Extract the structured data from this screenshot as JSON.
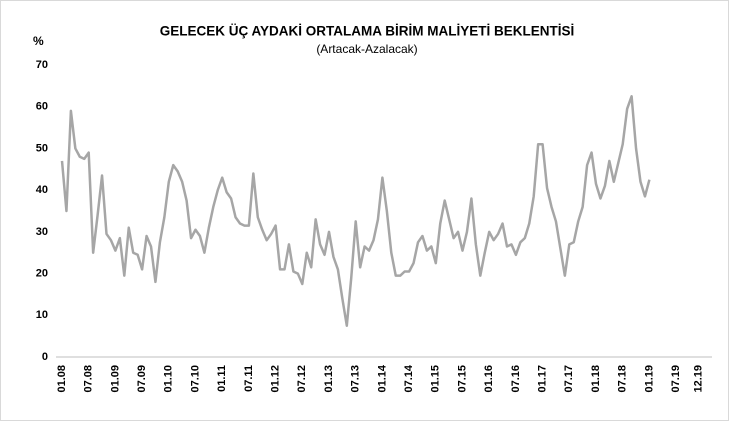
{
  "chart_data": {
    "type": "line",
    "title": "GELECEK ÜÇ AYDAKİ ORTALAMA BİRİM MALİYETİ BEKLENTİSİ",
    "subtitle": "(Artacak-Azalacak)",
    "y_label": "%",
    "categories": [
      "01.08",
      null,
      null,
      null,
      null,
      null,
      "07.08",
      null,
      null,
      null,
      null,
      null,
      "01.09",
      null,
      null,
      null,
      null,
      null,
      "07.09",
      null,
      null,
      null,
      null,
      null,
      "01.10",
      null,
      null,
      null,
      null,
      null,
      "07.10",
      null,
      null,
      null,
      null,
      null,
      "01.11",
      null,
      null,
      null,
      null,
      null,
      "07.11",
      null,
      null,
      null,
      null,
      null,
      "01.12",
      null,
      null,
      null,
      null,
      null,
      "07.12",
      null,
      null,
      null,
      null,
      null,
      "01.13",
      null,
      null,
      null,
      null,
      null,
      "07.13",
      null,
      null,
      null,
      null,
      null,
      "01.14",
      null,
      null,
      null,
      null,
      null,
      "07.14",
      null,
      null,
      null,
      null,
      null,
      "01.15",
      null,
      null,
      null,
      null,
      null,
      "07.15",
      null,
      null,
      null,
      null,
      null,
      "01.16",
      null,
      null,
      null,
      null,
      null,
      "07.16",
      null,
      null,
      null,
      null,
      null,
      "01.17",
      null,
      null,
      null,
      null,
      null,
      "07.17",
      null,
      null,
      null,
      null,
      null,
      "01.18",
      null,
      null,
      null,
      null,
      null,
      "07.18",
      null,
      null,
      null,
      null,
      null,
      "01.19",
      null,
      null,
      null,
      null,
      null,
      "07.19",
      null,
      null,
      null,
      null,
      "12.19"
    ],
    "series": [
      {
        "name": "Artacak-Azalacak",
        "color": "#a6a6a6",
        "values": [
          47,
          35,
          59,
          50,
          48,
          47.5,
          49,
          25,
          34,
          43.5,
          29.5,
          28,
          25.5,
          28.5,
          19.5,
          31,
          25,
          24.5,
          21,
          29,
          26.5,
          18,
          27.5,
          33.5,
          42,
          46,
          44.5,
          42,
          37.5,
          28.5,
          30.5,
          29,
          25,
          31,
          36,
          40,
          43,
          39.5,
          38,
          33.5,
          32,
          31.5,
          31.5,
          44,
          33.5,
          30.5,
          28,
          29.5,
          31.5,
          21,
          21,
          27,
          20.5,
          20,
          17.5,
          25,
          21.5,
          33,
          27,
          24.5,
          30,
          24,
          21,
          14,
          7.5,
          19,
          32.5,
          21.5,
          26.5,
          25.5,
          28,
          33,
          43,
          35,
          25,
          19.5,
          19.5,
          20.5,
          20.5,
          22.5,
          27.5,
          29,
          25.5,
          26.5,
          22.5,
          32,
          37.5,
          33,
          28.5,
          30,
          25.5,
          30,
          38,
          27,
          19.5,
          25,
          30,
          28,
          29.5,
          32,
          26.5,
          27,
          24.5,
          27.5,
          28.5,
          32,
          38.5,
          51,
          51,
          40.5,
          36,
          32.5,
          26,
          19.5,
          27,
          27.5,
          32.5,
          36,
          46,
          49,
          41.5,
          38,
          41,
          47,
          42,
          46.5,
          51,
          59.5,
          62.5,
          50,
          42,
          38.5,
          42.5,
          null,
          null,
          null,
          null,
          null,
          null,
          null,
          null,
          null,
          null,
          null
        ]
      }
    ],
    "ylim": [
      0,
      70
    ],
    "yticks": [
      0,
      10,
      20,
      30,
      40,
      50,
      60,
      70
    ],
    "grid": false
  }
}
